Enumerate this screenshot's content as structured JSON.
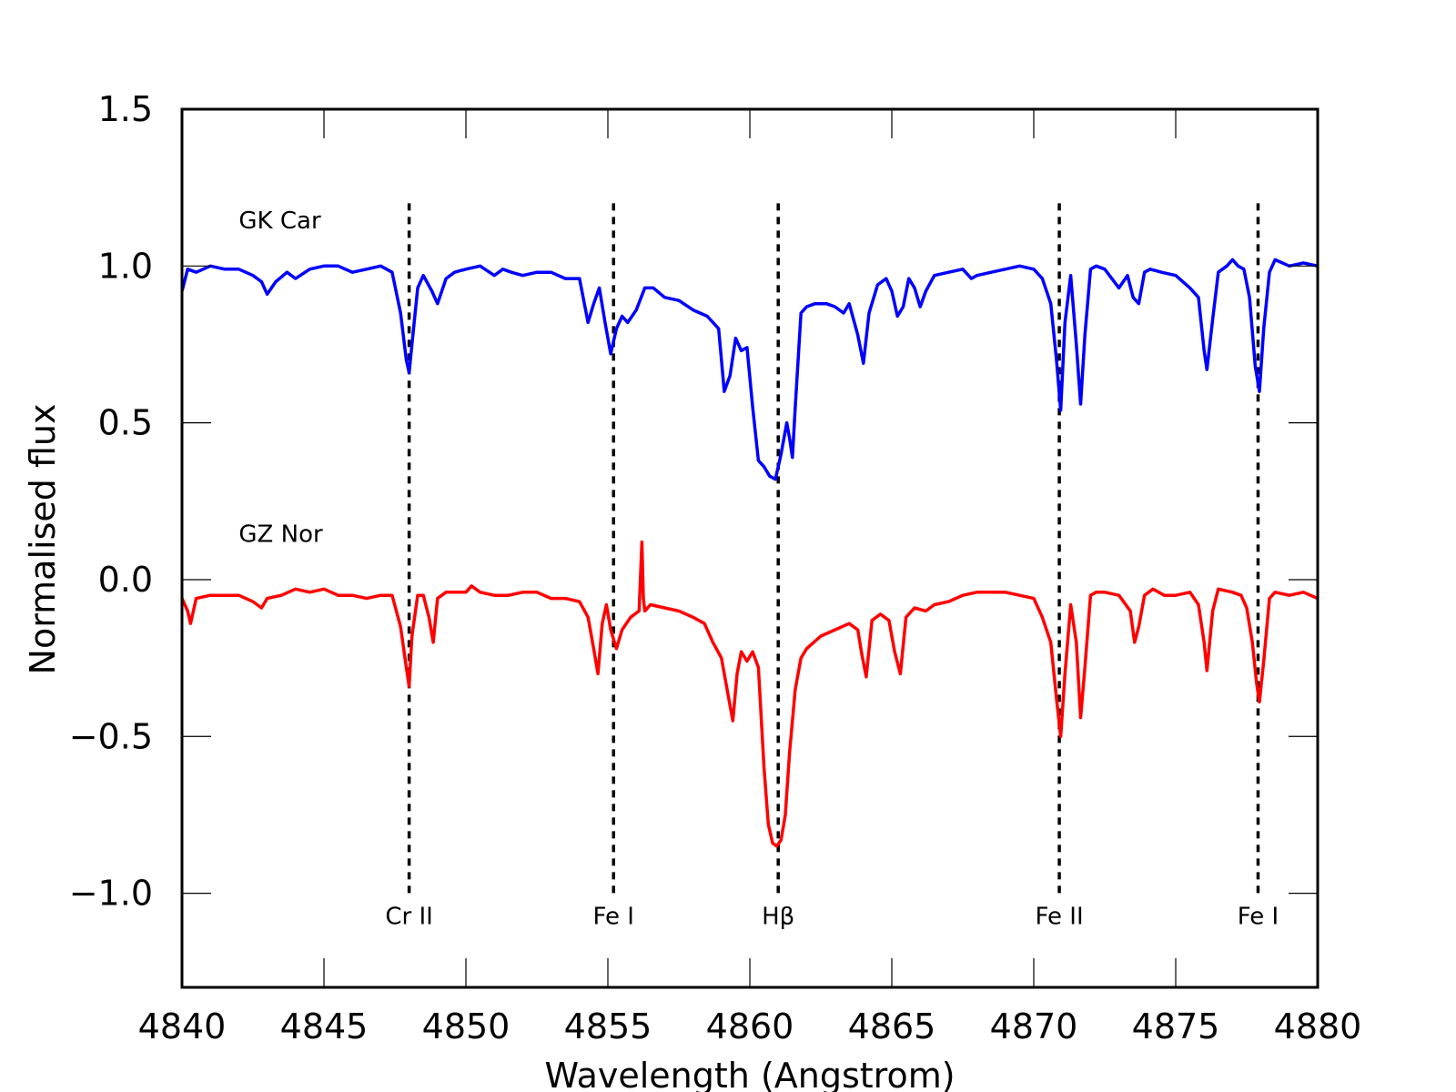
{
  "chart_data": {
    "type": "line",
    "title": "",
    "xlabel": "Wavelength (Angstrom)",
    "ylabel": "Normalised flux",
    "xlim": [
      4840,
      4880
    ],
    "ylim": [
      -1.3,
      1.5
    ],
    "x_ticks": [
      4840,
      4845,
      4850,
      4855,
      4860,
      4865,
      4870,
      4875,
      4880
    ],
    "x_tick_labels": [
      "4840",
      "4845",
      "4850",
      "4855",
      "4860",
      "4865",
      "4870",
      "4875",
      "4880"
    ],
    "y_ticks": [
      1.5,
      1.0,
      0.5,
      0.0,
      -0.5,
      -1.0
    ],
    "y_tick_labels": [
      "1.5",
      "1.0",
      "0.5",
      "0.0",
      "−0.5",
      "−1.0"
    ],
    "grid": false,
    "legend": null,
    "series": [
      {
        "name": "GK Car",
        "color": "#0000ff",
        "x": [
          4840.0,
          4840.2,
          4840.5,
          4841.0,
          4841.5,
          4842.0,
          4842.5,
          4842.8,
          4843.0,
          4843.3,
          4843.7,
          4844.0,
          4844.5,
          4845.0,
          4845.5,
          4846.0,
          4846.5,
          4847.0,
          4847.4,
          4847.7,
          4847.9,
          4848.0,
          4848.1,
          4848.3,
          4848.5,
          4848.8,
          4849.0,
          4849.3,
          4849.6,
          4850.0,
          4850.5,
          4851.0,
          4851.3,
          4851.6,
          4852.0,
          4852.5,
          4853.0,
          4853.5,
          4854.0,
          4854.3,
          4854.5,
          4854.7,
          4854.9,
          4855.1,
          4855.3,
          4855.5,
          4855.7,
          4856.0,
          4856.3,
          4856.6,
          4857.0,
          4857.5,
          4858.0,
          4858.5,
          4858.9,
          4859.1,
          4859.3,
          4859.5,
          4859.7,
          4859.9,
          4860.1,
          4860.3,
          4860.5,
          4860.7,
          4860.9,
          4861.0,
          4861.1,
          4861.3,
          4861.4,
          4861.5,
          4861.6,
          4861.8,
          4862.0,
          4862.3,
          4862.7,
          4863.0,
          4863.3,
          4863.5,
          4863.8,
          4864.0,
          4864.2,
          4864.5,
          4864.8,
          4865.0,
          4865.2,
          4865.4,
          4865.6,
          4865.8,
          4866.0,
          4866.2,
          4866.5,
          4867.0,
          4867.5,
          4867.8,
          4868.0,
          4868.5,
          4869.0,
          4869.5,
          4870.0,
          4870.3,
          4870.6,
          4870.8,
          4870.95,
          4871.1,
          4871.3,
          4871.5,
          4871.65,
          4871.8,
          4872.0,
          4872.2,
          4872.5,
          4873.0,
          4873.3,
          4873.5,
          4873.7,
          4873.9,
          4874.1,
          4874.5,
          4875.0,
          4875.5,
          4875.8,
          4876.0,
          4876.1,
          4876.3,
          4876.5,
          4876.8,
          4877.0,
          4877.2,
          4877.4,
          4877.6,
          4877.8,
          4877.95,
          4878.1,
          4878.3,
          4878.5,
          4879.0,
          4879.5,
          4880.0
        ],
        "y": [
          0.92,
          0.99,
          0.98,
          1.0,
          0.99,
          0.99,
          0.97,
          0.95,
          0.91,
          0.95,
          0.98,
          0.96,
          0.99,
          1.0,
          1.0,
          0.98,
          0.99,
          1.0,
          0.98,
          0.85,
          0.7,
          0.66,
          0.75,
          0.93,
          0.97,
          0.92,
          0.88,
          0.96,
          0.98,
          0.99,
          1.0,
          0.97,
          0.99,
          0.98,
          0.97,
          0.98,
          0.98,
          0.96,
          0.96,
          0.82,
          0.88,
          0.93,
          0.82,
          0.72,
          0.8,
          0.84,
          0.82,
          0.86,
          0.93,
          0.93,
          0.9,
          0.89,
          0.86,
          0.84,
          0.8,
          0.6,
          0.65,
          0.77,
          0.73,
          0.74,
          0.55,
          0.38,
          0.36,
          0.33,
          0.32,
          0.36,
          0.4,
          0.5,
          0.45,
          0.39,
          0.55,
          0.85,
          0.87,
          0.88,
          0.88,
          0.87,
          0.85,
          0.88,
          0.78,
          0.69,
          0.85,
          0.94,
          0.96,
          0.92,
          0.84,
          0.87,
          0.96,
          0.93,
          0.87,
          0.92,
          0.97,
          0.98,
          0.99,
          0.96,
          0.97,
          0.98,
          0.99,
          1.0,
          0.99,
          0.96,
          0.88,
          0.7,
          0.54,
          0.82,
          0.97,
          0.75,
          0.56,
          0.78,
          0.99,
          1.0,
          0.99,
          0.93,
          0.97,
          0.9,
          0.88,
          0.98,
          0.99,
          0.98,
          0.97,
          0.93,
          0.9,
          0.73,
          0.67,
          0.83,
          0.98,
          1.0,
          1.02,
          1.0,
          0.99,
          0.9,
          0.68,
          0.6,
          0.8,
          0.98,
          1.02,
          1.0,
          1.01,
          1.0
        ]
      },
      {
        "name": "GZ Nor",
        "color": "#ff0000",
        "x": [
          4840.0,
          4840.2,
          4840.3,
          4840.5,
          4841.0,
          4841.5,
          4842.0,
          4842.5,
          4842.8,
          4843.0,
          4843.5,
          4844.0,
          4844.5,
          4845.0,
          4845.5,
          4846.0,
          4846.5,
          4847.0,
          4847.4,
          4847.7,
          4847.9,
          4848.0,
          4848.1,
          4848.3,
          4848.5,
          4848.7,
          4848.85,
          4849.0,
          4849.3,
          4849.7,
          4850.0,
          4850.2,
          4850.5,
          4851.0,
          4851.5,
          4852.0,
          4852.5,
          4853.0,
          4853.5,
          4854.0,
          4854.3,
          4854.5,
          4854.65,
          4854.8,
          4854.95,
          4855.1,
          4855.3,
          4855.5,
          4855.8,
          4856.1,
          4856.2,
          4856.25,
          4856.3,
          4856.5,
          4857.0,
          4857.5,
          4858.0,
          4858.4,
          4858.7,
          4859.0,
          4859.2,
          4859.4,
          4859.55,
          4859.7,
          4859.9,
          4860.1,
          4860.3,
          4860.5,
          4860.65,
          4860.8,
          4860.95,
          4861.1,
          4861.25,
          4861.4,
          4861.6,
          4861.8,
          4862.0,
          4862.5,
          4863.0,
          4863.5,
          4863.8,
          4863.95,
          4864.1,
          4864.3,
          4864.6,
          4864.9,
          4865.1,
          4865.3,
          4865.5,
          4865.8,
          4866.2,
          4866.5,
          4867.0,
          4867.5,
          4868.0,
          4868.5,
          4869.0,
          4869.5,
          4870.0,
          4870.3,
          4870.6,
          4870.8,
          4870.95,
          4871.1,
          4871.3,
          4871.5,
          4871.65,
          4871.8,
          4872.0,
          4872.2,
          4872.5,
          4873.0,
          4873.4,
          4873.55,
          4873.7,
          4873.9,
          4874.2,
          4874.6,
          4875.0,
          4875.5,
          4875.8,
          4876.0,
          4876.1,
          4876.3,
          4876.5,
          4877.0,
          4877.3,
          4877.5,
          4877.7,
          4877.85,
          4877.95,
          4878.1,
          4878.3,
          4878.5,
          4879.0,
          4879.5,
          4880.0
        ],
        "y": [
          -0.06,
          -0.1,
          -0.14,
          -0.06,
          -0.05,
          -0.05,
          -0.05,
          -0.07,
          -0.09,
          -0.06,
          -0.05,
          -0.03,
          -0.04,
          -0.03,
          -0.05,
          -0.05,
          -0.06,
          -0.05,
          -0.05,
          -0.15,
          -0.28,
          -0.34,
          -0.18,
          -0.05,
          -0.05,
          -0.12,
          -0.2,
          -0.06,
          -0.04,
          -0.04,
          -0.04,
          -0.02,
          -0.04,
          -0.05,
          -0.05,
          -0.04,
          -0.04,
          -0.06,
          -0.06,
          -0.07,
          -0.12,
          -0.22,
          -0.3,
          -0.14,
          -0.08,
          -0.16,
          -0.22,
          -0.16,
          -0.12,
          -0.1,
          0.12,
          -0.06,
          -0.1,
          -0.08,
          -0.09,
          -0.1,
          -0.12,
          -0.14,
          -0.2,
          -0.25,
          -0.35,
          -0.45,
          -0.3,
          -0.23,
          -0.26,
          -0.23,
          -0.28,
          -0.6,
          -0.78,
          -0.84,
          -0.85,
          -0.83,
          -0.75,
          -0.55,
          -0.35,
          -0.25,
          -0.22,
          -0.18,
          -0.16,
          -0.14,
          -0.16,
          -0.24,
          -0.31,
          -0.13,
          -0.11,
          -0.13,
          -0.23,
          -0.3,
          -0.12,
          -0.09,
          -0.1,
          -0.08,
          -0.07,
          -0.05,
          -0.04,
          -0.04,
          -0.04,
          -0.05,
          -0.06,
          -0.12,
          -0.2,
          -0.38,
          -0.5,
          -0.3,
          -0.08,
          -0.2,
          -0.44,
          -0.28,
          -0.05,
          -0.04,
          -0.04,
          -0.05,
          -0.1,
          -0.2,
          -0.15,
          -0.05,
          -0.03,
          -0.05,
          -0.05,
          -0.04,
          -0.08,
          -0.2,
          -0.29,
          -0.1,
          -0.03,
          -0.04,
          -0.05,
          -0.09,
          -0.2,
          -0.33,
          -0.39,
          -0.26,
          -0.06,
          -0.04,
          -0.05,
          -0.04,
          -0.06
        ]
      }
    ],
    "series_labels": [
      {
        "text": "GK Car",
        "x": 4842,
        "y": 1.12
      },
      {
        "text": "GZ Nor",
        "x": 4842,
        "y": 0.12
      }
    ],
    "reference_lines": [
      {
        "label": "Cr II",
        "x": 4848.0,
        "y_top": 1.2,
        "y_bottom": -1.0
      },
      {
        "label": "Fe I",
        "x": 4855.2,
        "y_top": 1.2,
        "y_bottom": -1.0
      },
      {
        "label": "Hβ",
        "x": 4861.0,
        "y_top": 1.2,
        "y_bottom": -1.0
      },
      {
        "label": "Fe II",
        "x": 4870.9,
        "y_top": 1.2,
        "y_bottom": -1.0
      },
      {
        "label": "Fe I",
        "x": 4877.9,
        "y_top": 1.2,
        "y_bottom": -1.0
      }
    ]
  }
}
